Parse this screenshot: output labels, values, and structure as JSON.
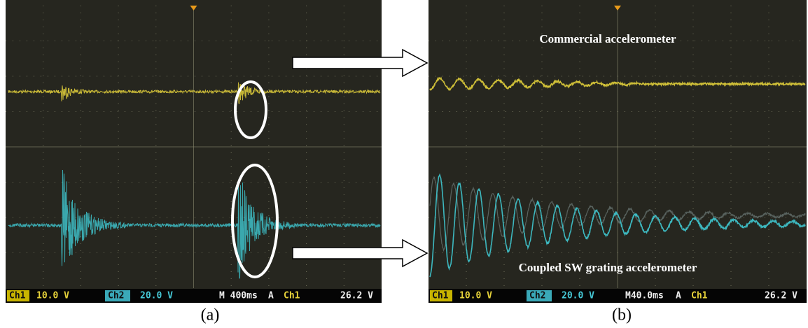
{
  "panels": [
    {
      "label": "(a)",
      "status": {
        "ch1": "Ch1",
        "ch1_scale": "10.0 V",
        "ch2": "Ch2",
        "ch2_scale": "20.0 V",
        "timebase": "M 400ms",
        "trigger_mode": "A",
        "trigger_source": "Ch1",
        "trigger_level": "26.2 V"
      }
    },
    {
      "label": "(b)",
      "annotations": [
        "Commercial accelerometer",
        "Coupled SW grating accelerometer"
      ],
      "status": {
        "ch1": "Ch1",
        "ch1_scale": "10.0 V",
        "ch2": "Ch2",
        "ch2_scale": "20.0 V",
        "timebase": "M40.0ms",
        "trigger_mode": "A",
        "trigger_source": "Ch1",
        "trigger_level": "26.2 V"
      }
    }
  ]
}
